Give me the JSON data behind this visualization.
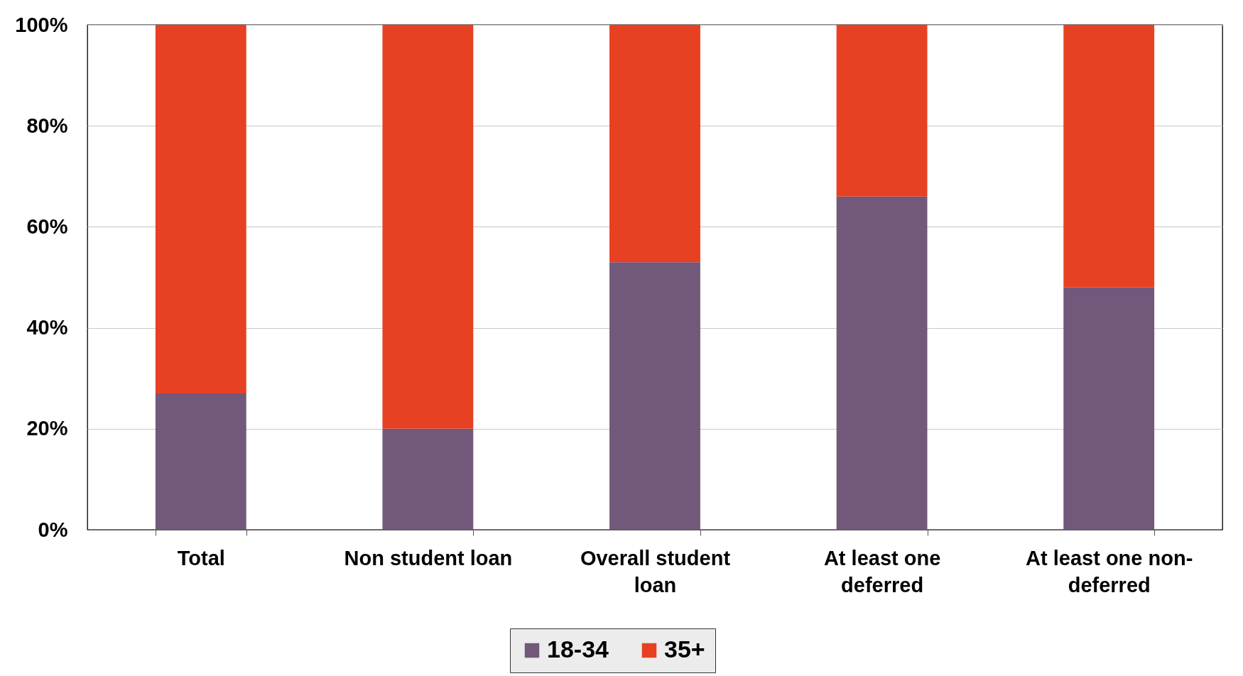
{
  "chart_data": {
    "type": "bar",
    "stacked": true,
    "categories": [
      "Total",
      "Non student loan",
      "Overall student loan",
      "At least one deferred",
      "At least one non-deferred"
    ],
    "series": [
      {
        "name": "18-34",
        "color": "#72587b",
        "values": [
          27,
          20,
          53,
          66,
          48
        ]
      },
      {
        "name": "35+",
        "color": "#e84022",
        "values": [
          73,
          80,
          47,
          34,
          52
        ]
      }
    ],
    "ylim": [
      0,
      100
    ],
    "yticks": [
      {
        "value": 0,
        "label": "0%"
      },
      {
        "value": 20,
        "label": "20%"
      },
      {
        "value": 40,
        "label": "40%"
      },
      {
        "value": 60,
        "label": "60%"
      },
      {
        "value": 80,
        "label": "80%"
      },
      {
        "value": 100,
        "label": "100%"
      }
    ],
    "grid": "y",
    "legend": "bottom"
  }
}
